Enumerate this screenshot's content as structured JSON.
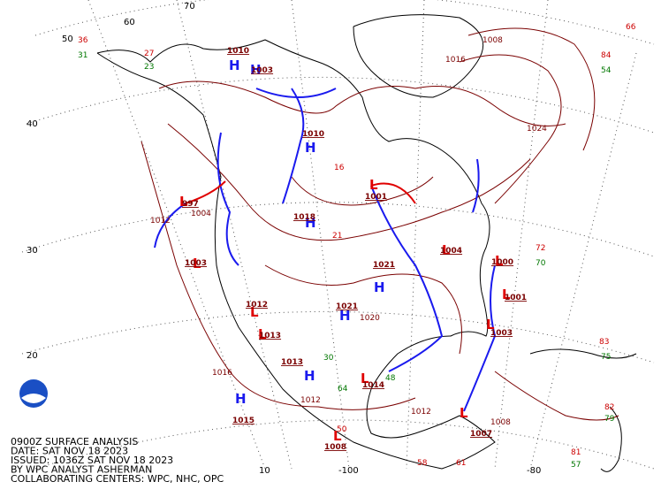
{
  "caption": [
    "0900Z SURFACE ANALYSIS",
    "DATE: SAT NOV 18 2023",
    "ISSUED: 1036Z SAT NOV 18 2023",
    "BY WPC ANALYST ASHERMAN",
    "COLLABORATING CENTERS: WPC, NHC, OPC"
  ],
  "latitude_labels": [
    "70",
    "60",
    "50",
    "40",
    "30",
    "20"
  ],
  "longitude_labels": [
    "10",
    "-100",
    "-80"
  ],
  "centers": [
    {
      "symbol": "H",
      "pressure": "1015"
    },
    {
      "symbol": "H",
      "pressure": "1013"
    },
    {
      "symbol": "L",
      "pressure": "1014"
    },
    {
      "symbol": "L",
      "pressure": "1007"
    },
    {
      "symbol": "L",
      "pressure": "1000"
    },
    {
      "symbol": "L",
      "pressure": "1001"
    },
    {
      "symbol": "L",
      "pressure": "1003"
    },
    {
      "symbol": "L",
      "pressure": "1001"
    },
    {
      "symbol": "H",
      "pressure": "1010"
    },
    {
      "symbol": "H",
      "pressure": "1003"
    },
    {
      "symbol": "L",
      "pressure": "997"
    },
    {
      "symbol": "L",
      "pressure": "1003"
    },
    {
      "symbol": "H",
      "pressure": "1021"
    },
    {
      "symbol": "H",
      "pressure": "1021"
    },
    {
      "symbol": "L",
      "pressure": "1008"
    },
    {
      "symbol": "L",
      "pressure": "1004"
    },
    {
      "symbol": "H",
      "pressure": "1018"
    },
    {
      "symbol": "L",
      "pressure": "1012"
    },
    {
      "symbol": "H",
      "pressure": "1010"
    },
    {
      "symbol": "L",
      "pressure": "1013"
    }
  ],
  "isobar_labels": [
    "1012",
    "1016",
    "1024",
    "1004",
    "1008",
    "1012",
    "1016",
    "1020",
    "1008",
    "1012"
  ],
  "station_values": [
    "66",
    "84",
    "54",
    "36",
    "31",
    "27",
    "23",
    "72",
    "70",
    "83",
    "75",
    "82",
    "79",
    "81",
    "57",
    "58",
    "61",
    "64",
    "48",
    "50",
    "30",
    "21",
    "16"
  ]
}
